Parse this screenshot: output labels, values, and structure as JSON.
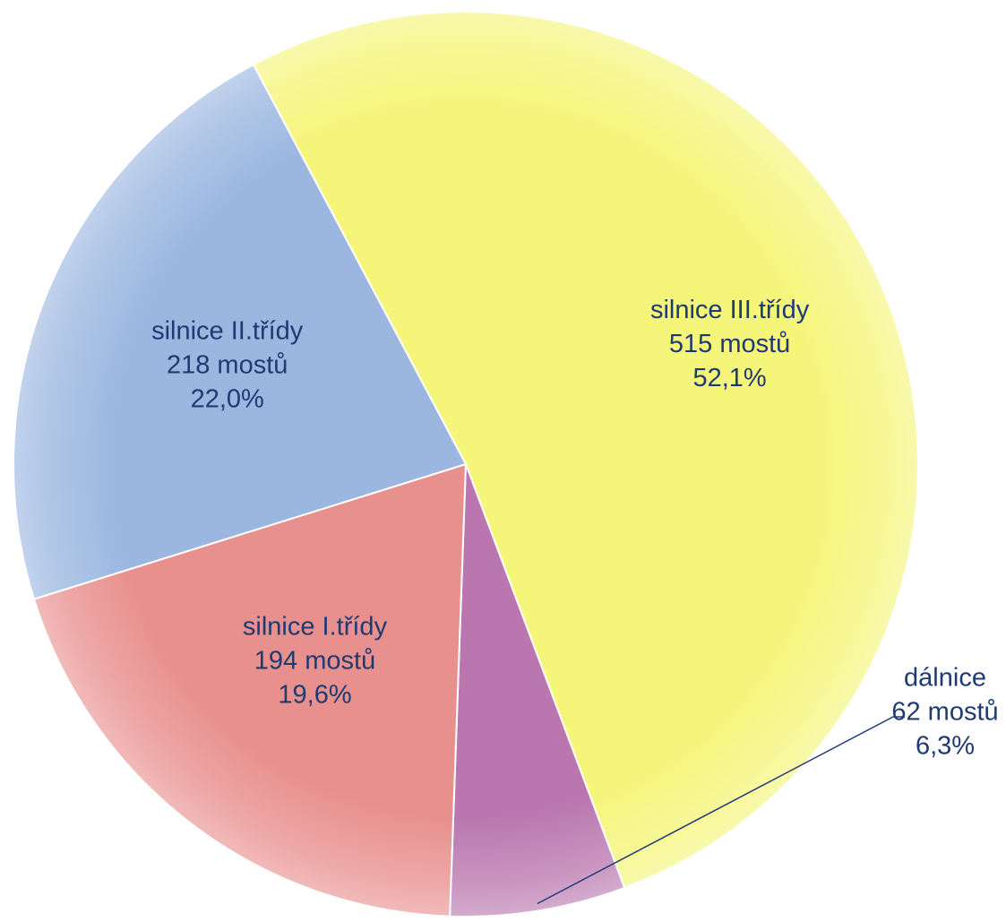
{
  "chart_data": {
    "type": "pie",
    "slices": [
      {
        "category": "silnice III.třídy",
        "count_label": "515 mostů",
        "percent_label": "52,1%",
        "value": 515,
        "percent": 52.1,
        "color": "#F5F57A"
      },
      {
        "category": "dálnice",
        "count_label": "62 mostů",
        "percent_label": "6,3%",
        "value": 62,
        "percent": 6.3,
        "color": "#BA77AF"
      },
      {
        "category": "silnice I.třídy",
        "count_label": "194 mostů",
        "percent_label": "19,6%",
        "value": 194,
        "percent": 19.6,
        "color": "#E8908E"
      },
      {
        "category": "silnice II.třídy",
        "count_label": "218 mostů",
        "percent_label": "22,0%",
        "value": 218,
        "percent": 22.0,
        "color": "#9BB7E0"
      }
    ],
    "label_color": "#1F3A73",
    "leader_line_color": "#1F3A73"
  }
}
